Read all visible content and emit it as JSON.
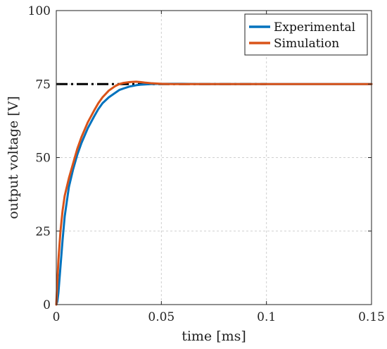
{
  "chart_data": {
    "type": "line",
    "xlabel": "time [ms]",
    "ylabel": "output voltage [V]",
    "xlim": [
      0,
      0.15
    ],
    "ylim": [
      0,
      100
    ],
    "xticks": [
      0,
      0.05,
      0.1,
      0.15
    ],
    "xtick_labels": [
      "0",
      "0.05",
      "0.1",
      "0.15"
    ],
    "yticks": [
      0,
      25,
      50,
      75,
      100
    ],
    "ytick_labels": [
      "0",
      "25",
      "50",
      "75",
      "100"
    ],
    "grid": true,
    "legend_position": "top-right",
    "reference_line": {
      "y": 75,
      "x_range": [
        0,
        0.1
      ],
      "style": "dash-dot",
      "color": "#000000"
    },
    "series": [
      {
        "name": "Experimental",
        "color": "#0072BD",
        "x": [
          0,
          0.0005,
          0.001,
          0.002,
          0.003,
          0.004,
          0.005,
          0.006,
          0.008,
          0.01,
          0.012,
          0.015,
          0.018,
          0.02,
          0.022,
          0.025,
          0.028,
          0.03,
          0.032,
          0.035,
          0.038,
          0.04,
          0.045,
          0.05,
          0.055,
          0.06,
          0.07,
          0.08,
          0.09,
          0.1,
          0.12,
          0.15
        ],
        "y": [
          0,
          1,
          4,
          13,
          22,
          30,
          35,
          40,
          46,
          51,
          55,
          60,
          64,
          66.5,
          68.5,
          70.5,
          72,
          73,
          73.5,
          74.2,
          74.6,
          74.8,
          75,
          75.1,
          75.1,
          75.1,
          75,
          75,
          75,
          75,
          75,
          75
        ]
      },
      {
        "name": "Simulation",
        "color": "#D95319",
        "x": [
          0,
          0.001,
          0.002,
          0.003,
          0.004,
          0.005,
          0.006,
          0.008,
          0.01,
          0.012,
          0.015,
          0.018,
          0.02,
          0.022,
          0.025,
          0.028,
          0.03,
          0.032,
          0.035,
          0.038,
          0.04,
          0.042,
          0.045,
          0.05,
          0.055,
          0.06,
          0.07,
          0.08,
          0.09,
          0.1,
          0.12,
          0.15
        ],
        "y": [
          0,
          15,
          25,
          32,
          37,
          40,
          43,
          48,
          53,
          57,
          62,
          66,
          68.5,
          70.5,
          72.8,
          74.3,
          75,
          75.4,
          75.7,
          75.8,
          75.7,
          75.5,
          75.3,
          75.1,
          75,
          75,
          75,
          75,
          75,
          75,
          75,
          75
        ]
      }
    ]
  }
}
